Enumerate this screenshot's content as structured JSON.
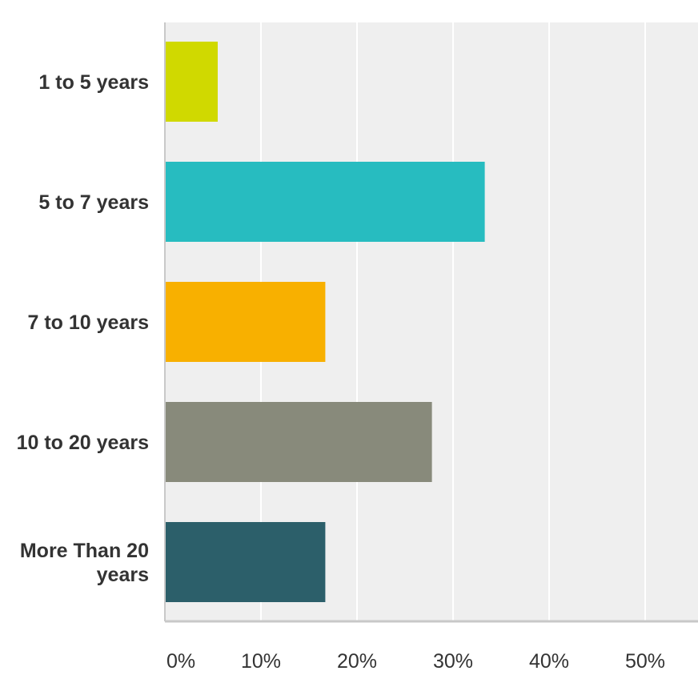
{
  "chart_data": {
    "type": "bar",
    "orientation": "horizontal",
    "categories": [
      [
        "1 to 5 years"
      ],
      [
        "5 to 7 years"
      ],
      [
        "7 to 10 years"
      ],
      [
        "10 to 20 years"
      ],
      [
        "More Than 20",
        "years"
      ]
    ],
    "values": [
      5.5,
      33.3,
      16.7,
      27.8,
      16.7
    ],
    "colors": [
      "#d0d900",
      "#27bcc0",
      "#f8b000",
      "#888a7b",
      "#2c5f6a"
    ],
    "xlim": [
      0,
      55
    ],
    "ticks": [
      0,
      10,
      20,
      30,
      40,
      50
    ],
    "tick_labels": [
      "0%",
      "10%",
      "20%",
      "30%",
      "40%",
      "50%"
    ],
    "grid": true,
    "plot_background": "#efefef",
    "title": "",
    "xlabel": "",
    "ylabel": ""
  }
}
